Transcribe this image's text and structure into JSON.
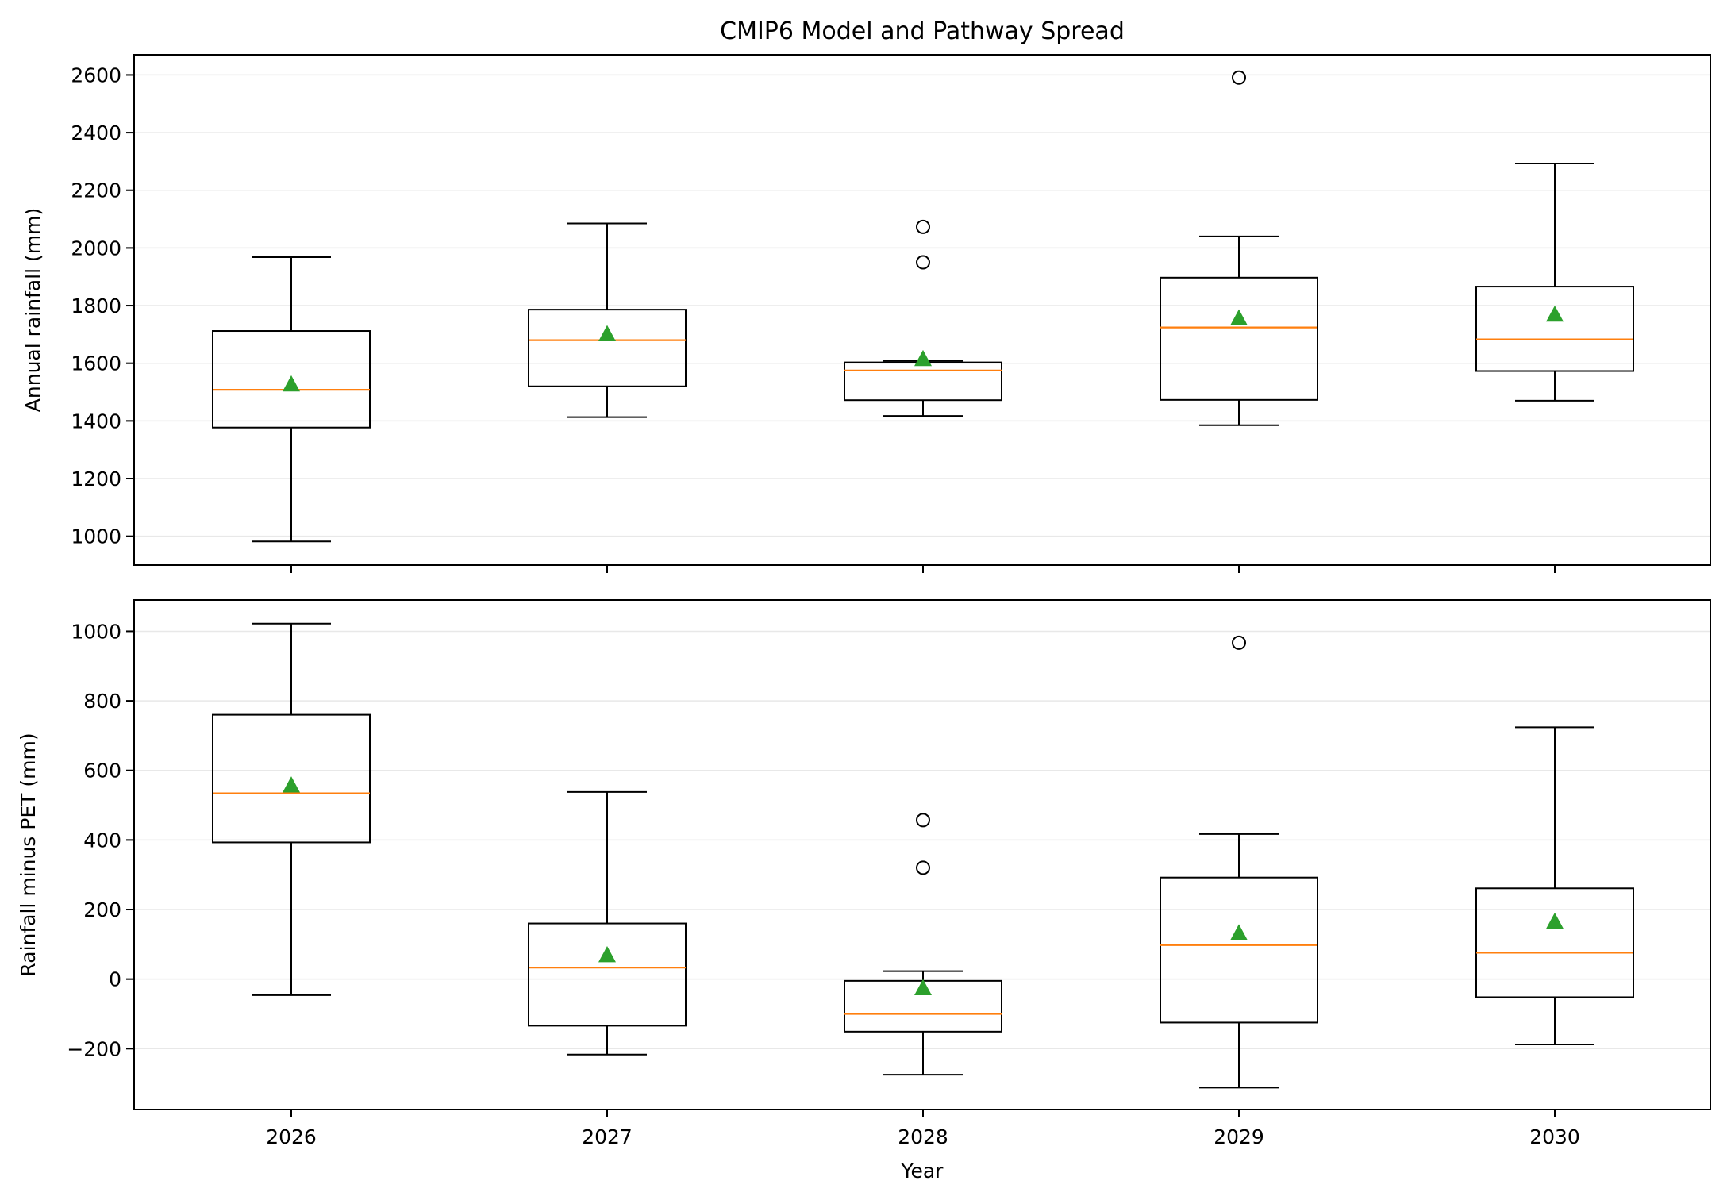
{
  "chart_data": {
    "type": "box",
    "title": "CMIP6 Model and Pathway Spread",
    "xlabel": "Year",
    "categories": [
      "2026",
      "2027",
      "2028",
      "2029",
      "2030"
    ],
    "colors": {
      "median": "#ff7f0e",
      "mean": "#2ca02c",
      "box": "#000000",
      "grid": "#e8e8e8"
    },
    "grid": true,
    "panels": [
      {
        "ylabel": "Annual rainfall (mm)",
        "ylim": [
          900,
          2670
        ],
        "yticks": [
          1000,
          1200,
          1400,
          1600,
          1800,
          2000,
          2200,
          2400,
          2600
        ],
        "ytick_labels": [
          "1000",
          "1200",
          "1400",
          "1600",
          "1800",
          "2000",
          "2200",
          "2400",
          "2600"
        ],
        "boxes": [
          {
            "whislo": 982,
            "q1": 1377,
            "med": 1508,
            "q3": 1712,
            "whishi": 1968,
            "mean": 1528,
            "fliers": []
          },
          {
            "whislo": 1413,
            "q1": 1520,
            "med": 1680,
            "q3": 1786,
            "whishi": 2085,
            "mean": 1702,
            "fliers": []
          },
          {
            "whislo": 1417,
            "q1": 1472,
            "med": 1575,
            "q3": 1603,
            "whishi": 1608,
            "mean": 1616,
            "fliers": [
              1950,
              2073
            ]
          },
          {
            "whislo": 1385,
            "q1": 1473,
            "med": 1724,
            "q3": 1897,
            "whishi": 2040,
            "mean": 1757,
            "fliers": [
              2591
            ]
          },
          {
            "whislo": 1470,
            "q1": 1573,
            "med": 1683,
            "q3": 1866,
            "whishi": 2293,
            "mean": 1770,
            "fliers": []
          }
        ]
      },
      {
        "ylabel": "Rainfall minus PET (mm)",
        "ylim": [
          -375,
          1090
        ],
        "yticks": [
          -200,
          0,
          200,
          400,
          600,
          800,
          1000
        ],
        "ytick_labels": [
          "−200",
          "0",
          "200",
          "400",
          "600",
          "800",
          "1000"
        ],
        "boxes": [
          {
            "whislo": -46,
            "q1": 393,
            "med": 534,
            "q3": 760,
            "whishi": 1022,
            "mean": 558,
            "fliers": []
          },
          {
            "whislo": -217,
            "q1": -134,
            "med": 33,
            "q3": 160,
            "whishi": 538,
            "mean": 70,
            "fliers": []
          },
          {
            "whislo": -275,
            "q1": -151,
            "med": -100,
            "q3": -5,
            "whishi": 23,
            "mean": -25,
            "fliers": [
              320,
              457
            ]
          },
          {
            "whislo": -312,
            "q1": -125,
            "med": 98,
            "q3": 292,
            "whishi": 417,
            "mean": 133,
            "fliers": [
              967
            ]
          },
          {
            "whislo": -188,
            "q1": -52,
            "med": 76,
            "q3": 261,
            "whishi": 724,
            "mean": 166,
            "fliers": []
          }
        ]
      }
    ]
  }
}
